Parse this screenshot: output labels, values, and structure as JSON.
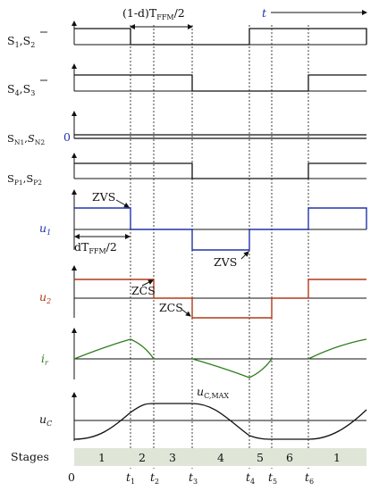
{
  "top_note": "(1-d)Tₓ",
  "annotations": {
    "top_interval": "(1-d)T",
    "top_interval_sub": "FFM",
    "top_interval_tail": "/2",
    "t_arrow": "t",
    "dT": "dT",
    "dT_sub": "FFM",
    "dT_tail": "/2",
    "zvs1": "ZVS",
    "zvs2": "ZVS",
    "zcs1": "ZCS",
    "zcs2": "ZCS",
    "ucmax": "u",
    "ucmax_sub": "C,MAX"
  },
  "signals": [
    {
      "name": "S1_S2bar",
      "label_main": "S",
      "label_sub1": "1",
      "label_sep": ",",
      "label_main2": "S",
      "label_sub2": "2"
    },
    {
      "name": "S4_S3bar",
      "label_main": "S",
      "label_sub1": "4",
      "label_sep": ",",
      "label_main2": "S",
      "label_sub2": "3"
    },
    {
      "name": "SN1_SN2",
      "label_main": "S",
      "label_sub1": "N1",
      "label_sep": ",",
      "label_main2": "S",
      "label_sub2": "N2",
      "zero": "0"
    },
    {
      "name": "SP1_SP2",
      "label_main": "S",
      "label_sub1": "P1",
      "label_sep": ",",
      "label_main2": "S",
      "label_sub2": "P2"
    },
    {
      "name": "u1",
      "label_main": "u",
      "label_sub1": "1"
    },
    {
      "name": "u2",
      "label_main": "u",
      "label_sub1": "2"
    },
    {
      "name": "ir",
      "label_main": "i",
      "label_sub1": "r"
    },
    {
      "name": "uC",
      "label_main": "u",
      "label_sub1": "C"
    }
  ],
  "stages_label": "Stages",
  "stages": [
    "1",
    "2",
    "3",
    "4",
    "5",
    "6",
    "1"
  ],
  "time_ticks": [
    {
      "t": "0",
      "sub": ""
    },
    {
      "t": "t",
      "sub": "1"
    },
    {
      "t": "t",
      "sub": "2"
    },
    {
      "t": "t",
      "sub": "3"
    },
    {
      "t": "t",
      "sub": "4"
    },
    {
      "t": "t",
      "sub": "5"
    },
    {
      "t": "t",
      "sub": "6"
    }
  ],
  "colors": {
    "axis": "#111111",
    "u1": "#2233aa",
    "u2": "#b23a1a",
    "ir": "#2e7d1e",
    "stage_band": "#dfe6d8"
  }
}
